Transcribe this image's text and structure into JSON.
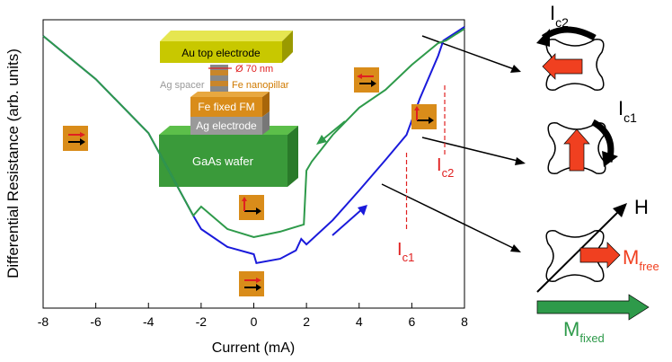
{
  "chart_data": {
    "type": "line",
    "x_label": "Current (mA)",
    "y_label": "Differential Resistance (arb. units)",
    "xlim": [
      -8,
      8
    ],
    "xticks": [
      -8,
      -6,
      -4,
      -2,
      0,
      2,
      4,
      6,
      8
    ],
    "ylim": [
      0,
      1
    ],
    "series": [
      {
        "color": "#1a1adb",
        "x": [
          -8,
          -6,
          -4,
          -2.3,
          -2,
          -1,
          0,
          0.1,
          1,
          1.6,
          1.8,
          2,
          3,
          4,
          5,
          5.8,
          6.3,
          7,
          7.2,
          8
        ],
        "values": [
          0.944,
          0.794,
          0.607,
          0.321,
          0.274,
          0.212,
          0.187,
          0.156,
          0.171,
          0.2,
          0.24,
          0.221,
          0.305,
          0.408,
          0.514,
          0.601,
          0.726,
          0.875,
          0.928,
          0.975
        ]
      },
      {
        "color": "#2e9a4a",
        "x": [
          8,
          7.3,
          7,
          6,
          5,
          4,
          3,
          2.2,
          2,
          1.9,
          1,
          0,
          -1,
          -2,
          -2.3,
          -4,
          -6,
          -8
        ],
        "values": [
          0.969,
          0.928,
          0.919,
          0.844,
          0.757,
          0.695,
          0.601,
          0.508,
          0.477,
          0.29,
          0.265,
          0.246,
          0.274,
          0.352,
          0.321,
          0.607,
          0.794,
          0.944
        ]
      }
    ],
    "annotations": [
      {
        "text": "I",
        "sub": "c1",
        "x": 5.8
      },
      {
        "text": "I",
        "sub": "c2",
        "x": 7.25
      }
    ]
  },
  "inset": {
    "top": "Au top electrode",
    "diameter": "Ø 70 nm",
    "spacer": "Ag spacer",
    "pillar": "Fe nanopillar",
    "fixed": "Fe fixed FM",
    "electrode": "Ag electrode",
    "wafer": "GaAs wafer"
  },
  "schematic": {
    "ic2": {
      "text": "I",
      "sub": "c2"
    },
    "ic1": {
      "text": "I",
      "sub": "c1"
    },
    "field": "H",
    "mfree": {
      "text": "M",
      "sub": "free"
    },
    "mfixed": {
      "text": "M",
      "sub": "fixed"
    }
  }
}
